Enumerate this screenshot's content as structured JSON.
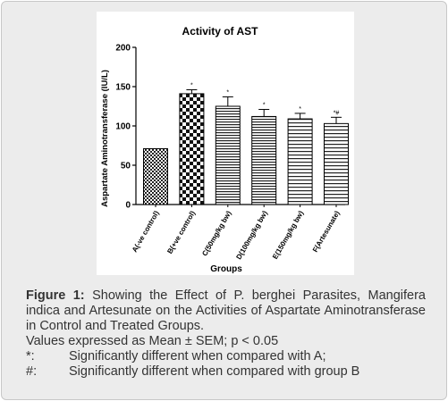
{
  "chart_data": {
    "type": "bar",
    "title": "Activity of AST",
    "xlabel": "Groups",
    "ylabel": "Aspartate Aminotransferase (IU/L)",
    "ylim": [
      0,
      200
    ],
    "yticks": [
      0,
      50,
      100,
      150,
      200
    ],
    "categories": [
      "A(-ve control)",
      "B(+ve control)",
      "C(50mg/kg bw)",
      "D(100mg/kg bw)",
      "E(150mg/kg bw)",
      "F(Artesunate)"
    ],
    "values": [
      71,
      141,
      125,
      112,
      109,
      103
    ],
    "errors": [
      0,
      5,
      12,
      9,
      7,
      8
    ],
    "annotations": [
      "",
      "*",
      "*",
      "*",
      "*",
      "*#"
    ],
    "grid": false,
    "patterns": [
      "dots",
      "checker",
      "horizontal",
      "horizontal",
      "horizontal-wide",
      "horizontal-wide"
    ]
  },
  "caption": {
    "figure_label": "Figure 1:",
    "text": "Showing the Effect of P. berghei Parasites, Mangifera indica and Artesunate on the Activities of Aspartate Aminotransferase in Control and Treated Groups.",
    "stats_line": "Values expressed as Mean ± SEM; p < 0.05",
    "notes": [
      {
        "symbol": "*:",
        "text": "Significantly different when compared with A;"
      },
      {
        "symbol": "#:",
        "text": "Significantly different when compared with group B"
      }
    ]
  }
}
